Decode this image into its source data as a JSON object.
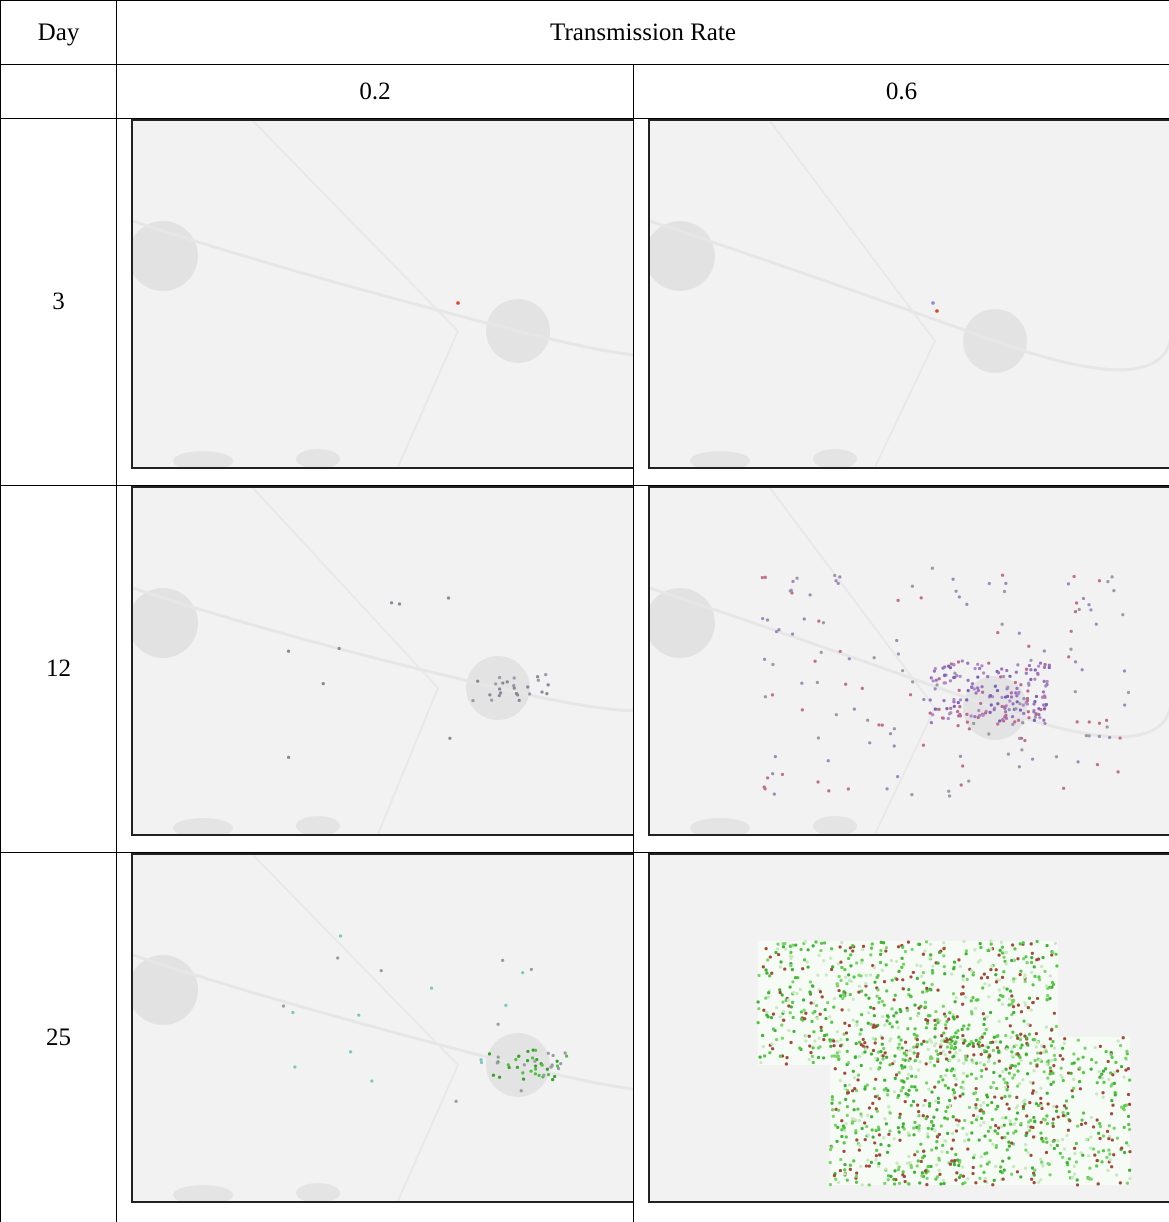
{
  "table": {
    "header": {
      "day": "Day",
      "group": "Transmission Rate"
    },
    "rates": [
      0.2,
      0.6
    ],
    "rows": [
      {
        "day": 3
      },
      {
        "day": 12
      },
      {
        "day": 25
      }
    ]
  }
}
